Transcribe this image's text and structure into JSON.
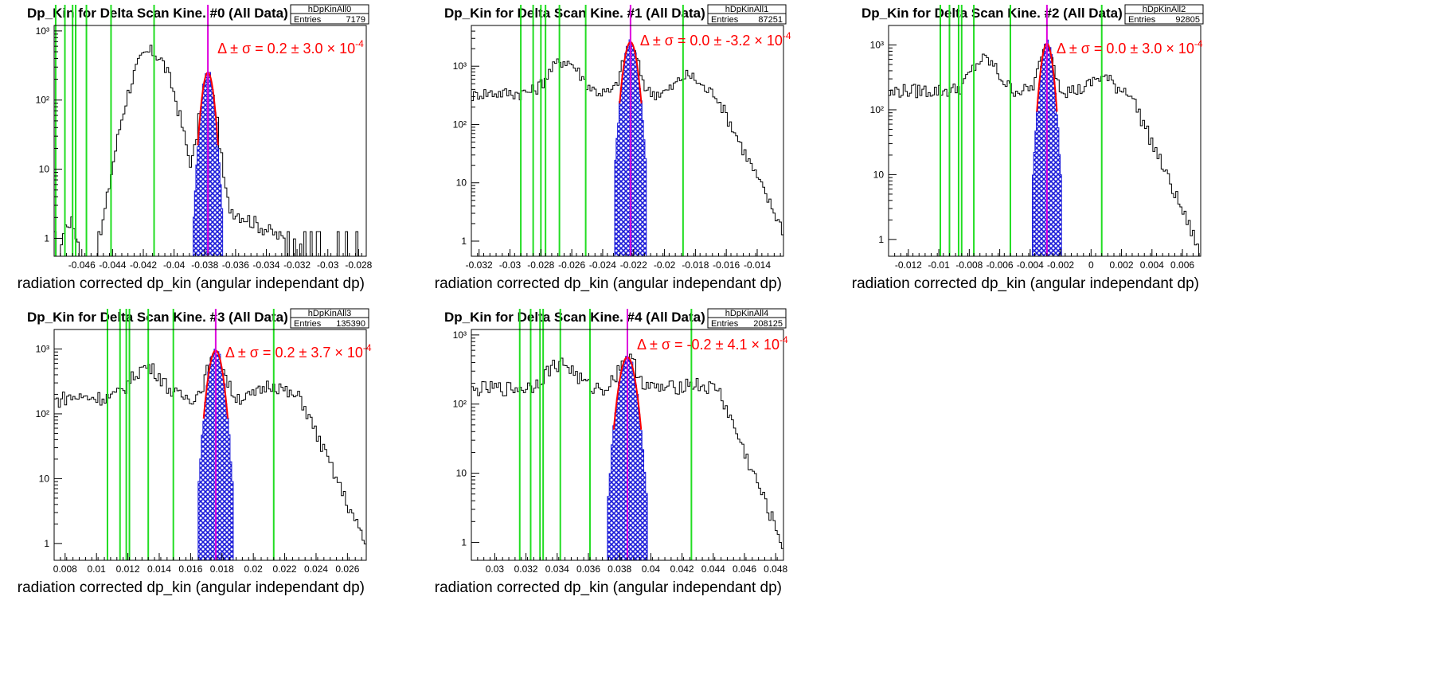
{
  "chart_data": [
    {
      "type": "histogram",
      "title": "Dp_Kin for Delta Scan Kine. #0 (All Data)",
      "xlabel": "radiation corrected dp_kin (angular independant dp)",
      "stat_box": {
        "name": "hDpKinAll0",
        "entries_label": "Entries",
        "entries": "7179"
      },
      "fit_text": {
        "prefix": "Δ ± σ = ",
        "value": "0.2 ± 3.0 × 10",
        "exp": "-4"
      },
      "x_range": [
        -0.0478,
        -0.0275
      ],
      "y_log": true,
      "y_range": [
        0.55,
        1200
      ],
      "x_ticks": [
        "-0.046",
        "-0.044",
        "-0.042",
        "-0.04",
        "-0.038",
        "-0.036",
        "-0.034",
        "-0.032",
        "-0.03",
        "-0.028"
      ],
      "x_tick_values": [
        -0.046,
        -0.044,
        -0.042,
        -0.04,
        -0.038,
        -0.036,
        -0.034,
        -0.032,
        -0.03,
        -0.028
      ],
      "y_ticks": [
        "1",
        "10",
        "10²",
        "10³"
      ],
      "peaks": [
        {
          "center": -0.0415,
          "sigma": 0.0009,
          "height": 500
        },
        {
          "center": -0.0468,
          "sigma": 0.0004,
          "height": 1.5
        }
      ],
      "background": 4,
      "fit_peak": {
        "center": -0.0378,
        "sigma": 0.0003,
        "height": 250
      },
      "green_lines": [
        -0.0477,
        -0.0471,
        -0.0466,
        -0.0464,
        -0.0457,
        -0.0441,
        -0.0413
      ],
      "magenta_line": -0.0378
    },
    {
      "type": "histogram",
      "title": "Dp_Kin for Delta Scan Kine. #1 (All Data)",
      "xlabel": "radiation corrected dp_kin (angular independant dp)",
      "stat_box": {
        "name": "hDpKinAll1",
        "entries_label": "Entries",
        "entries": "87251"
      },
      "fit_text": {
        "prefix": "Δ ± σ = ",
        "value": "0.0 ± -3.2 × 10",
        "exp": "-4"
      },
      "x_range": [
        -0.0325,
        -0.0123
      ],
      "y_log": true,
      "y_range": [
        0.55,
        5000
      ],
      "x_ticks": [
        "-0.032",
        "-0.03",
        "-0.028",
        "-0.026",
        "-0.024",
        "-0.022",
        "-0.02",
        "-0.018",
        "-0.016",
        "-0.014"
      ],
      "x_tick_values": [
        -0.032,
        -0.03,
        -0.028,
        -0.026,
        -0.024,
        -0.022,
        -0.02,
        -0.018,
        -0.016,
        -0.014
      ],
      "y_ticks": [
        "1",
        "10",
        "10²",
        "10³"
      ],
      "peaks": [
        {
          "center": -0.0265,
          "sigma": 0.0008,
          "height": 900
        },
        {
          "center": -0.0185,
          "sigma": 0.0006,
          "height": 350
        }
      ],
      "background": 350,
      "fit_peak": {
        "center": -0.0222,
        "sigma": 0.00032,
        "height": 2600
      },
      "green_lines": [
        -0.0293,
        -0.0285,
        -0.028,
        -0.0277,
        -0.0268,
        -0.0251,
        -0.0188
      ],
      "magenta_line": -0.0222
    },
    {
      "type": "histogram",
      "title": "Dp_Kin for Delta Scan Kine. #2 (All Data)",
      "xlabel": "radiation corrected dp_kin (angular independant dp)",
      "stat_box": {
        "name": "hDpKinAll2",
        "entries_label": "Entries",
        "entries": "92805"
      },
      "fit_text": {
        "prefix": "Δ ± σ = ",
        "value": "0.0 ± 3.0 × 10",
        "exp": "-4"
      },
      "x_range": [
        -0.0133,
        0.0072
      ],
      "y_log": true,
      "y_range": [
        0.55,
        2000
      ],
      "x_ticks": [
        "-0.012",
        "-0.01",
        "-0.008",
        "-0.006",
        "-0.004",
        "-0.002",
        "0",
        "0.002",
        "0.004",
        "0.006"
      ],
      "x_tick_values": [
        -0.012,
        -0.01,
        -0.008,
        -0.006,
        -0.004,
        -0.002,
        0,
        0.002,
        0.004,
        0.006
      ],
      "y_ticks": [
        "1",
        "10",
        "10²",
        "10³"
      ],
      "peaks": [
        {
          "center": -0.007,
          "sigma": 0.0007,
          "height": 400
        },
        {
          "center": 0.0007,
          "sigma": 0.0006,
          "height": 120
        }
      ],
      "background": 200,
      "fit_peak": {
        "center": -0.0029,
        "sigma": 0.0003,
        "height": 1050
      },
      "green_lines": [
        -0.0099,
        -0.0093,
        -0.0087,
        -0.0085,
        -0.0077,
        -0.0053,
        0.0007
      ],
      "magenta_line": -0.0029
    },
    {
      "type": "histogram",
      "title": "Dp_Kin for Delta Scan Kine. #3 (All Data)",
      "xlabel": "radiation corrected dp_kin (angular independant dp)",
      "stat_box": {
        "name": "hDpKinAll3",
        "entries_label": "Entries",
        "entries": "135390"
      },
      "fit_text": {
        "prefix": "Δ ± σ = ",
        "value": "0.2 ± 3.7 × 10",
        "exp": "-4"
      },
      "x_range": [
        0.0073,
        0.0272
      ],
      "y_log": true,
      "y_range": [
        0.55,
        2000
      ],
      "x_ticks": [
        "0.008",
        "0.01",
        "0.012",
        "0.014",
        "0.016",
        "0.018",
        "0.02",
        "0.022",
        "0.024",
        "0.026"
      ],
      "x_tick_values": [
        0.008,
        0.01,
        0.012,
        0.014,
        0.016,
        0.018,
        0.02,
        0.022,
        0.024,
        0.026
      ],
      "y_ticks": [
        "1",
        "10",
        "10²",
        "10³"
      ],
      "peaks": [
        {
          "center": 0.0132,
          "sigma": 0.0008,
          "height": 350
        },
        {
          "center": 0.0212,
          "sigma": 0.0006,
          "height": 110
        }
      ],
      "background": 180,
      "fit_peak": {
        "center": 0.0176,
        "sigma": 0.00035,
        "height": 950
      },
      "green_lines": [
        0.0107,
        0.0115,
        0.0119,
        0.0121,
        0.0133,
        0.0149,
        0.0213
      ],
      "magenta_line": 0.0176
    },
    {
      "type": "histogram",
      "title": "Dp_Kin for Delta Scan Kine. #4 (All Data)",
      "xlabel": "radiation corrected dp_kin (angular independant dp)",
      "stat_box": {
        "name": "hDpKinAll4",
        "entries_label": "Entries",
        "entries": "208125"
      },
      "fit_text": {
        "prefix": "Δ ± σ = ",
        "value": "-0.2 ± 4.1 × 10",
        "exp": "-4"
      },
      "x_range": [
        0.0285,
        0.0485
      ],
      "y_log": true,
      "y_range": [
        0.55,
        1200
      ],
      "x_ticks": [
        "0.03",
        "0.032",
        "0.034",
        "0.036",
        "0.038",
        "0.04",
        "0.042",
        "0.044",
        "0.046",
        "0.048"
      ],
      "x_tick_values": [
        0.03,
        0.032,
        0.034,
        0.036,
        0.038,
        0.04,
        0.042,
        0.044,
        0.046,
        0.048
      ],
      "y_ticks": [
        "1",
        "10",
        "10²",
        "10³"
      ],
      "peaks": [
        {
          "center": 0.0342,
          "sigma": 0.0008,
          "height": 220
        },
        {
          "center": 0.0425,
          "sigma": 0.0006,
          "height": 30
        }
      ],
      "background": 170,
      "fit_peak": {
        "center": 0.0385,
        "sigma": 0.0004,
        "height": 480
      },
      "green_lines": [
        0.0316,
        0.0323,
        0.0329,
        0.0331,
        0.0342,
        0.0361,
        0.0426
      ],
      "magenta_line": 0.0385
    }
  ]
}
